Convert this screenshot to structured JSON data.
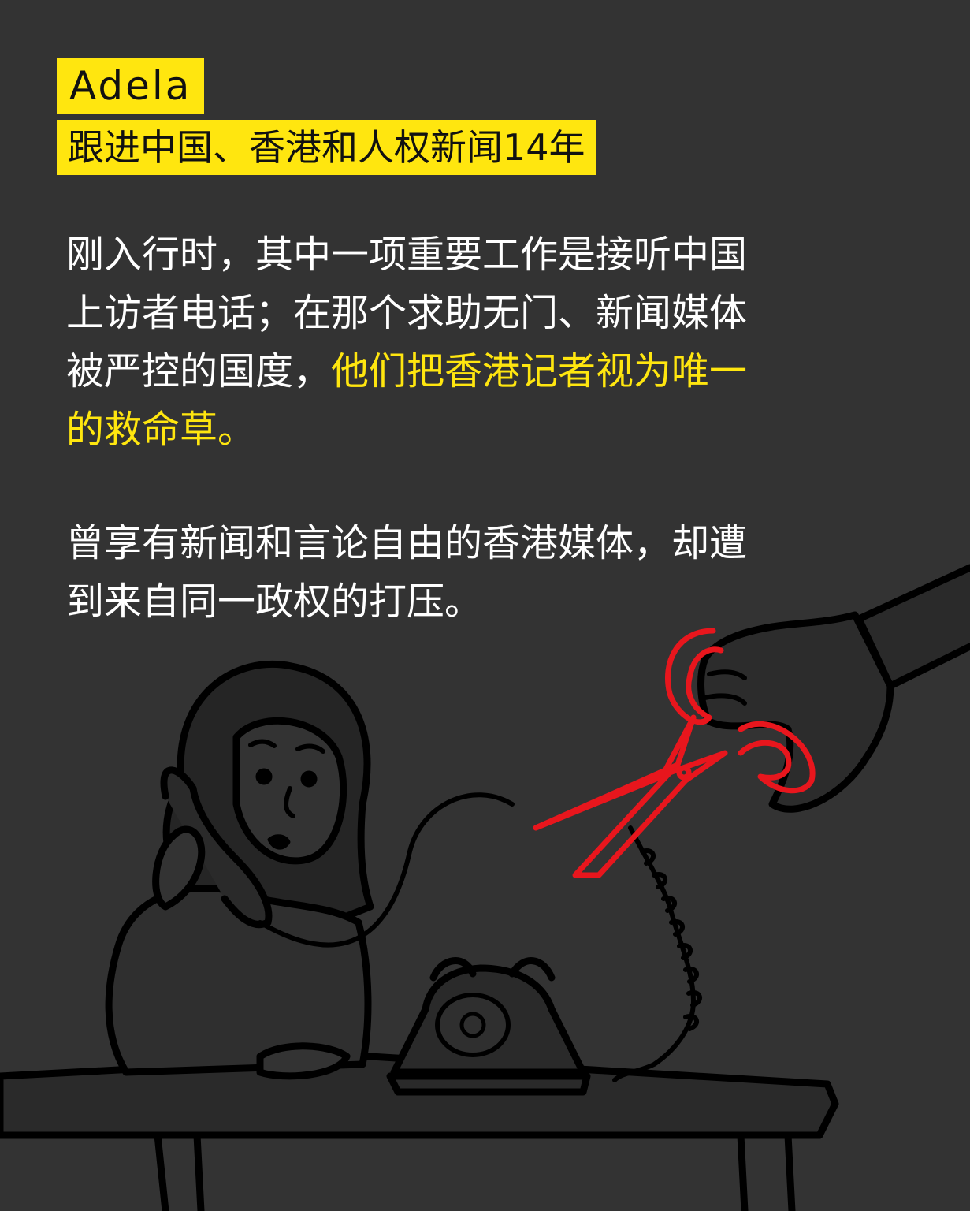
{
  "header": {
    "name": "Adela",
    "beat": "跟进中国、香港和人权新闻14年"
  },
  "body": {
    "para1_plain": "刚入行时，其中一项重要工作是接听中国上访者电话；在那个求助无门、新闻媒体被严控的国度，",
    "para1_highlight": "他们把香港记者视为唯一的救命草。",
    "para2": "曾享有新闻和言论自由的香港媒体，却遭到来自同一政权的打压。"
  },
  "colors": {
    "background": "#333333",
    "highlight": "#ffe60f",
    "text": "#ffffff",
    "scissors": "#e8161d",
    "line": "#000000",
    "fill": "#2a2a2a"
  },
  "illustration": {
    "icons": [
      "woman-on-phone-illustration",
      "rotary-telephone-icon",
      "scissors-icon",
      "hand-icon",
      "desk-icon"
    ]
  }
}
